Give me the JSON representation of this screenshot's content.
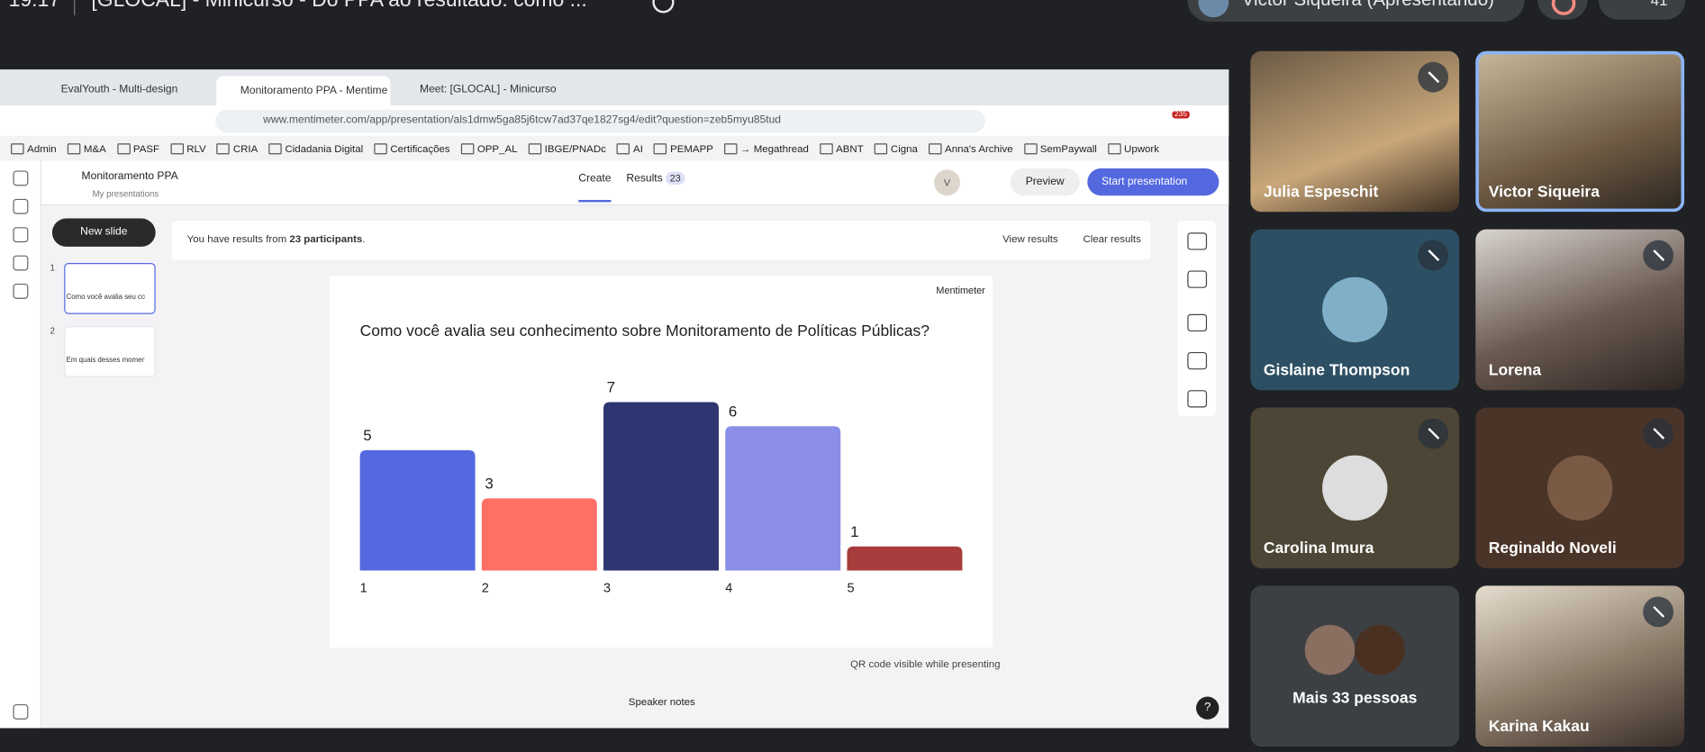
{
  "meet": {
    "time": "19:17",
    "title": "[GLOCAL] - Minicurso - Do PPA ao resultado: como ...",
    "presenter": "Victor Siqueira (Apresentando)",
    "count": "41"
  },
  "browser": {
    "tabs": [
      "EvalYouth - Multi-design",
      "Monitoramento PPA - Mentime",
      "Meet: [GLOCAL] - Minicurso"
    ],
    "url": "www.mentimeter.com/app/presentation/als1dmw5ga85j6tcw7ad37qe1827sg4/edit?question=zeb5myu85tud",
    "extension_badge": "235",
    "bookmarks": [
      "Admin",
      "M&A",
      "PASF",
      "RLV",
      "CRIA",
      "Cidadania Digital",
      "Certificações",
      "OPP_AL",
      "IBGE/PNADc",
      "AI",
      "PEMAPP",
      "→ Megathread",
      "ABNT",
      "Cigna",
      "Anna's Archive",
      "SemPaywall",
      "Upwork"
    ]
  },
  "app": {
    "presentation": "Monitoramento PPA",
    "breadcrumb": "My presentations",
    "nav_create": "Create",
    "nav_results": "Results",
    "results_count": "23",
    "avatar": "V",
    "preview": "Preview",
    "start": "Start presentation",
    "new_slide": "New slide",
    "slides": [
      {
        "number": "1",
        "label": "Como você avalia seu co"
      },
      {
        "number": "2",
        "label": "Em quais desses momentos..."
      }
    ],
    "banner": {
      "prefix": "You have results from",
      "participants": "23 participants",
      "suffix": ".",
      "view": "View results",
      "clear": "Clear results"
    },
    "brand": "Mentimeter",
    "question": "Como você avalia seu conhecimento sobre Monitoramento de Políticas Públicas?",
    "chart": {
      "categories": [
        "1",
        "2",
        "3",
        "4",
        "5"
      ],
      "values": [
        5,
        3,
        7,
        6,
        1
      ],
      "colors": [
        "#5468e0",
        "#ff6f66",
        "#2e3570",
        "#8a8ee6",
        "#a83c3c"
      ]
    },
    "qr": "QR code visible while presenting",
    "speaker_notes": "Speaker notes",
    "help": "?"
  },
  "participants": [
    "Julia Espeschit",
    "Victor Siqueira",
    "Gislaine Thompson",
    "Lorena",
    "Carolina Imura",
    "Reginaldo Noveli",
    "Mais 33 pessoas",
    "Karina Kakau"
  ]
}
